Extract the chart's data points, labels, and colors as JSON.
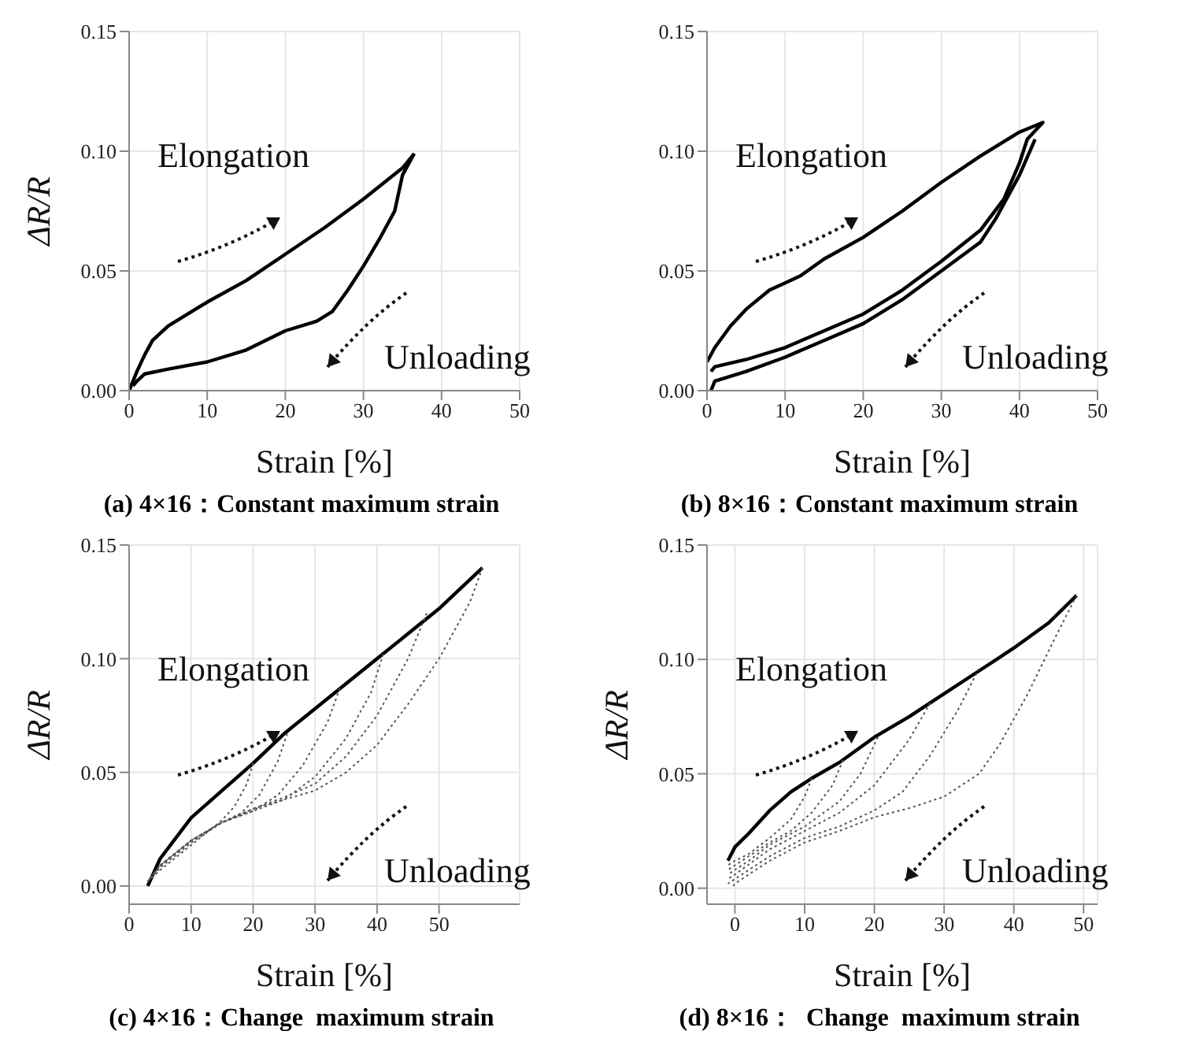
{
  "chart_data": [
    {
      "type": "line",
      "title": "(a) 4×16：Constant maximum strain",
      "xlabel": "Strain [%]",
      "ylabel": "ΔR/R",
      "annotations": [
        "Elongation",
        "Unloading"
      ],
      "xlim": [
        0,
        50
      ],
      "ylim": [
        0,
        0.15
      ],
      "xticks": [
        0,
        10,
        20,
        30,
        40,
        50
      ],
      "yticks": [
        {
          "value": 0,
          "label": "0.00"
        },
        {
          "value": 0.05,
          "label": "0.05"
        },
        {
          "value": 0.1,
          "label": "0.10"
        },
        {
          "value": 0.15,
          "label": "0.15"
        }
      ],
      "grid": true,
      "marker": "none",
      "series": [
        {
          "color": "#000000",
          "line_style": "solid",
          "x": [
            0,
            1,
            2,
            3,
            5,
            8,
            10,
            15,
            20,
            25,
            30,
            35,
            36.5
          ],
          "values": [
            0,
            0.008,
            0.015,
            0.021,
            0.027,
            0.033,
            0.037,
            0.046,
            0.057,
            0.068,
            0.08,
            0.093,
            0.099
          ]
        },
        {
          "color": "#000000",
          "line_style": "solid",
          "x": [
            36.5,
            35,
            34,
            32,
            30,
            28,
            26,
            24,
            20,
            15,
            10,
            5,
            2,
            1,
            0.5
          ],
          "values": [
            0.099,
            0.09,
            0.075,
            0.063,
            0.052,
            0.042,
            0.033,
            0.029,
            0.025,
            0.017,
            0.012,
            0.009,
            0.007,
            0.004,
            0.002
          ]
        }
      ]
    },
    {
      "type": "line",
      "title": "(b) 8×16：Constant maximum strain",
      "xlabel": "Strain [%]",
      "annotations": [
        "Elongation",
        "Unloading"
      ],
      "xlim": [
        0,
        50
      ],
      "ylim": [
        0,
        0.15
      ],
      "xticks": [
        0,
        10,
        20,
        30,
        40,
        50
      ],
      "yticks": [
        {
          "value": 0,
          "label": "0.00"
        },
        {
          "value": 0.05,
          "label": "0.05"
        },
        {
          "value": 0.1,
          "label": "0.10"
        },
        {
          "value": 0.15,
          "label": "0.15"
        }
      ],
      "grid": true,
      "marker": "none",
      "series": [
        {
          "color": "#000000",
          "line_style": "solid",
          "x": [
            0,
            1,
            3,
            5,
            8,
            10,
            12,
            15,
            20,
            25,
            30,
            35,
            40,
            43,
            41,
            40,
            38,
            35,
            30,
            25,
            20,
            15,
            10,
            5,
            1,
            0.5
          ],
          "values": [
            0.012,
            0.018,
            0.027,
            0.034,
            0.042,
            0.045,
            0.048,
            0.055,
            0.064,
            0.075,
            0.087,
            0.098,
            0.108,
            0.112,
            0.105,
            0.095,
            0.08,
            0.067,
            0.054,
            0.042,
            0.032,
            0.025,
            0.018,
            0.013,
            0.01,
            0.008
          ]
        },
        {
          "color": "#000000",
          "line_style": "solid",
          "x": [
            42,
            40,
            37,
            35,
            30,
            25,
            20,
            15,
            10,
            5,
            1,
            0.5
          ],
          "values": [
            0.105,
            0.09,
            0.072,
            0.062,
            0.05,
            0.038,
            0.028,
            0.021,
            0.014,
            0.008,
            0.004,
            0
          ]
        }
      ]
    },
    {
      "type": "line",
      "title": "(c) 4×16：Change  maximum strain",
      "xlabel": "Strain [%]",
      "ylabel": "ΔR/R",
      "annotations": [
        "Elongation",
        "Unloading"
      ],
      "xlim": [
        0,
        63
      ],
      "ylim": [
        -0.008,
        0.15
      ],
      "xticks": [
        0,
        10,
        20,
        30,
        40,
        50
      ],
      "yticks": [
        {
          "value": 0,
          "label": "0.00"
        },
        {
          "value": 0.05,
          "label": "0.05"
        },
        {
          "value": 0.1,
          "label": "0.10"
        },
        {
          "value": 0.15,
          "label": "0.15"
        }
      ],
      "grid": true,
      "marker": "none",
      "series": [
        {
          "color": "#000000",
          "line_style": "solid",
          "x": [
            3,
            5,
            10,
            15,
            20,
            25,
            30,
            35,
            40,
            45,
            50,
            57
          ],
          "values": [
            0,
            0.012,
            0.03,
            0.042,
            0.054,
            0.067,
            0.078,
            0.089,
            0.1,
            0.111,
            0.122,
            0.14
          ]
        },
        {
          "color": "#555555",
          "line_style": "dotted",
          "x": [
            20,
            19,
            17,
            15,
            10,
            5,
            3
          ],
          "values": [
            0.054,
            0.045,
            0.035,
            0.029,
            0.018,
            0.007,
            0.002
          ]
        },
        {
          "color": "#555555",
          "line_style": "dotted",
          "x": [
            25.5,
            24,
            21,
            18,
            15,
            10,
            5,
            3
          ],
          "values": [
            0.067,
            0.055,
            0.04,
            0.032,
            0.028,
            0.019,
            0.008,
            0.002
          ]
        },
        {
          "color": "#555555",
          "line_style": "dotted",
          "x": [
            34,
            32,
            28,
            24,
            20,
            15,
            10,
            5,
            3
          ],
          "values": [
            0.087,
            0.072,
            0.053,
            0.04,
            0.033,
            0.028,
            0.02,
            0.009,
            0.002
          ]
        },
        {
          "color": "#555555",
          "line_style": "dotted",
          "x": [
            41,
            39,
            35,
            30,
            25,
            20,
            15,
            10,
            5,
            3
          ],
          "values": [
            0.102,
            0.085,
            0.065,
            0.048,
            0.038,
            0.033,
            0.028,
            0.02,
            0.009,
            0.002
          ]
        },
        {
          "color": "#555555",
          "line_style": "dotted",
          "x": [
            48,
            45,
            40,
            35,
            30,
            25,
            20,
            15,
            10,
            5,
            3
          ],
          "values": [
            0.12,
            0.1,
            0.075,
            0.057,
            0.045,
            0.039,
            0.034,
            0.028,
            0.02,
            0.009,
            0.002
          ]
        },
        {
          "color": "#555555",
          "line_style": "dotted",
          "x": [
            57,
            55,
            50,
            45,
            40,
            35,
            30,
            25,
            20,
            15,
            10,
            5,
            3
          ],
          "values": [
            0.14,
            0.125,
            0.1,
            0.08,
            0.062,
            0.05,
            0.042,
            0.038,
            0.034,
            0.028,
            0.02,
            0.009,
            0.002
          ]
        }
      ]
    },
    {
      "type": "line",
      "title": "(d) 8×16：  Change  maximum strain",
      "xlabel": "Strain [%]",
      "ylabel": "ΔR/R",
      "annotations": [
        "Elongation",
        "Unloading"
      ],
      "xlim": [
        -4,
        52
      ],
      "ylim": [
        -0.007,
        0.15
      ],
      "xticks": [
        0,
        10,
        20,
        30,
        40,
        50
      ],
      "yticks": [
        {
          "value": 0,
          "label": "0.00"
        },
        {
          "value": 0.05,
          "label": "0.05"
        },
        {
          "value": 0.1,
          "label": "0.10"
        },
        {
          "value": 0.15,
          "label": "0.15"
        }
      ],
      "grid": true,
      "marker": "none",
      "series": [
        {
          "color": "#000000",
          "line_style": "solid",
          "x": [
            -1,
            0,
            2,
            5,
            8,
            11,
            15,
            20,
            25,
            28,
            35,
            40,
            45,
            49
          ],
          "values": [
            0.012,
            0.018,
            0.024,
            0.034,
            0.042,
            0.048,
            0.055,
            0.066,
            0.075,
            0.081,
            0.095,
            0.105,
            0.116,
            0.128
          ]
        },
        {
          "color": "#555555",
          "line_style": "dotted",
          "x": [
            11,
            10,
            8,
            5,
            2,
            0,
            -1
          ],
          "values": [
            0.048,
            0.04,
            0.03,
            0.022,
            0.015,
            0.012,
            0.01
          ]
        },
        {
          "color": "#555555",
          "line_style": "dotted",
          "x": [
            15.5,
            14,
            11,
            8,
            5,
            2,
            0,
            -1
          ],
          "values": [
            0.056,
            0.045,
            0.033,
            0.025,
            0.02,
            0.014,
            0.01,
            0.008
          ]
        },
        {
          "color": "#555555",
          "line_style": "dotted",
          "x": [
            20.5,
            18,
            15,
            10,
            5,
            2,
            0,
            -1
          ],
          "values": [
            0.066,
            0.05,
            0.038,
            0.027,
            0.019,
            0.012,
            0.008,
            0.006
          ]
        },
        {
          "color": "#555555",
          "line_style": "dotted",
          "x": [
            28,
            25,
            20,
            15,
            10,
            5,
            0,
            -1
          ],
          "values": [
            0.081,
            0.065,
            0.045,
            0.033,
            0.025,
            0.017,
            0.006,
            0.004
          ]
        },
        {
          "color": "#555555",
          "line_style": "dotted",
          "x": [
            35,
            32,
            28,
            24,
            20,
            15,
            10,
            5,
            0,
            -1
          ],
          "values": [
            0.096,
            0.078,
            0.058,
            0.042,
            0.034,
            0.027,
            0.022,
            0.014,
            0.004,
            0.002
          ]
        },
        {
          "color": "#555555",
          "line_style": "dotted",
          "x": [
            49,
            46,
            42,
            38,
            35,
            30,
            25,
            20,
            15,
            10,
            5,
            0,
            -0.5
          ],
          "values": [
            0.128,
            0.11,
            0.085,
            0.063,
            0.05,
            0.04,
            0.035,
            0.031,
            0.025,
            0.02,
            0.012,
            0.002,
            0
          ]
        }
      ]
    }
  ]
}
